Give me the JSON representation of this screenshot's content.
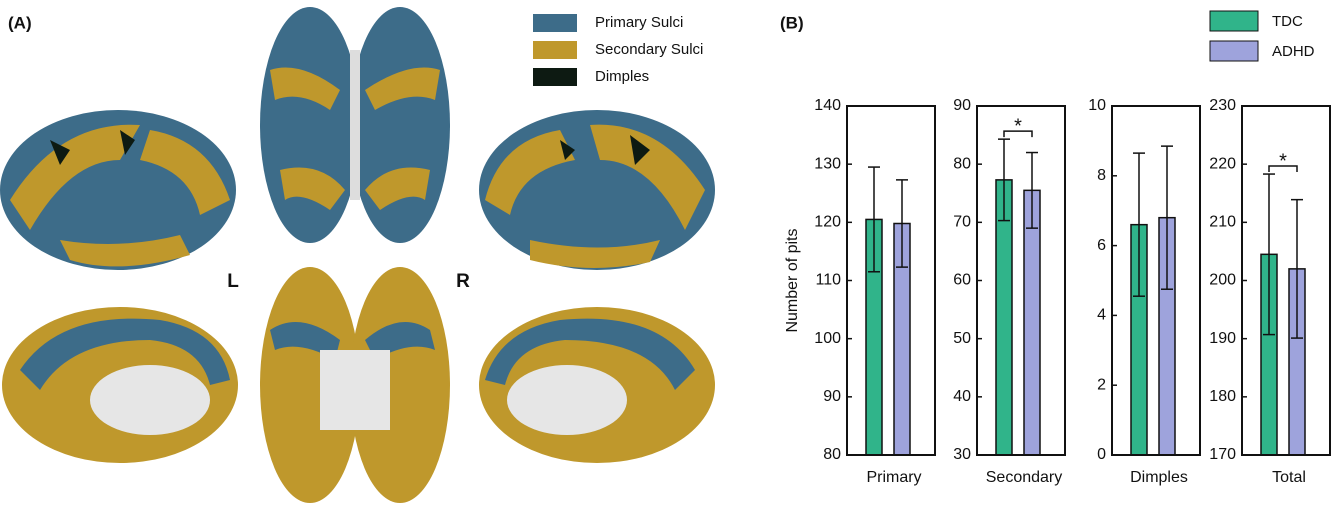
{
  "panel_a": {
    "label": "(A)",
    "legend": [
      {
        "name": "Primary Sulci",
        "color": "#3d6c89"
      },
      {
        "name": "Secondary Sulci",
        "color": "#bf982c"
      },
      {
        "name": "Dimples",
        "color": "#0d1a12"
      }
    ],
    "hemisphere_labels": [
      "L",
      "R"
    ]
  },
  "panel_b": {
    "label": "(B)"
  },
  "chart_data": [
    {
      "type": "bar",
      "categories": [
        "Primary"
      ],
      "y_label": "Number of pits",
      "ylim": [
        80,
        140
      ],
      "yticks": [
        80,
        90,
        100,
        110,
        120,
        130,
        140
      ],
      "series": [
        {
          "name": "TDC",
          "color": "#30b48a",
          "values": [
            120.5
          ],
          "errors": [
            9
          ]
        },
        {
          "name": "ADHD",
          "color": "#9ea3dc",
          "values": [
            119.8
          ],
          "errors": [
            7.5
          ]
        }
      ]
    },
    {
      "type": "bar",
      "categories": [
        "Secondary"
      ],
      "ylim": [
        30,
        90
      ],
      "yticks": [
        30,
        40,
        50,
        60,
        70,
        80,
        90
      ],
      "annotation": "*",
      "series": [
        {
          "color": "#30b48a",
          "values": [
            77.3
          ],
          "errors": [
            7
          ]
        },
        {
          "color": "#9ea3dc",
          "values": [
            75.5
          ],
          "errors": [
            6.5
          ]
        }
      ]
    },
    {
      "type": "bar",
      "categories": [
        "Dimples"
      ],
      "ylim": [
        0,
        10
      ],
      "yticks": [
        0,
        2,
        4,
        6,
        8,
        10
      ],
      "series": [
        {
          "color": "#30b48a",
          "values": [
            6.6
          ],
          "errors": [
            2.05
          ]
        },
        {
          "color": "#9ea3dc",
          "values": [
            6.8
          ],
          "errors": [
            2.05
          ]
        }
      ]
    },
    {
      "type": "bar",
      "categories": [
        "Total"
      ],
      "ylim": [
        170,
        230
      ],
      "yticks": [
        170,
        180,
        190,
        200,
        210,
        220,
        230
      ],
      "annotation": "*",
      "series": [
        {
          "color": "#30b48a",
          "values": [
            204.5
          ],
          "errors": [
            13.8
          ]
        },
        {
          "color": "#9ea3dc",
          "values": [
            202
          ],
          "errors": [
            11.9
          ]
        }
      ]
    }
  ]
}
